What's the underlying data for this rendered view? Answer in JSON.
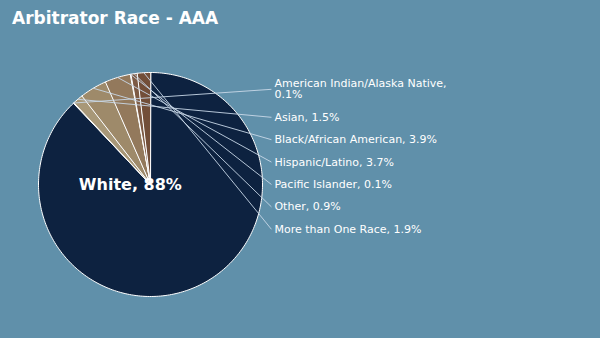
{
  "chart_data": {
    "type": "pie",
    "title": "Arbitrator Race - AAA",
    "categories": [
      "White, 88%",
      "American Indian/Alaska Native,\n0.1%",
      "Asian, 1.5%",
      "Black/African American, 3.9%",
      "Hispanic/Latino, 3.7%",
      "Pacific Islander, 0.1%",
      "Other, 0.9%",
      "More than One Race, 1.9%"
    ],
    "values": [
      88.0,
      0.1,
      1.5,
      3.9,
      3.7,
      0.1,
      0.9,
      1.9
    ],
    "colors": [
      "#0d2240",
      "#b5a882",
      "#a89878",
      "#9e8a6a",
      "#93795c",
      "#886850",
      "#7d5a44",
      "#724e38"
    ]
  }
}
